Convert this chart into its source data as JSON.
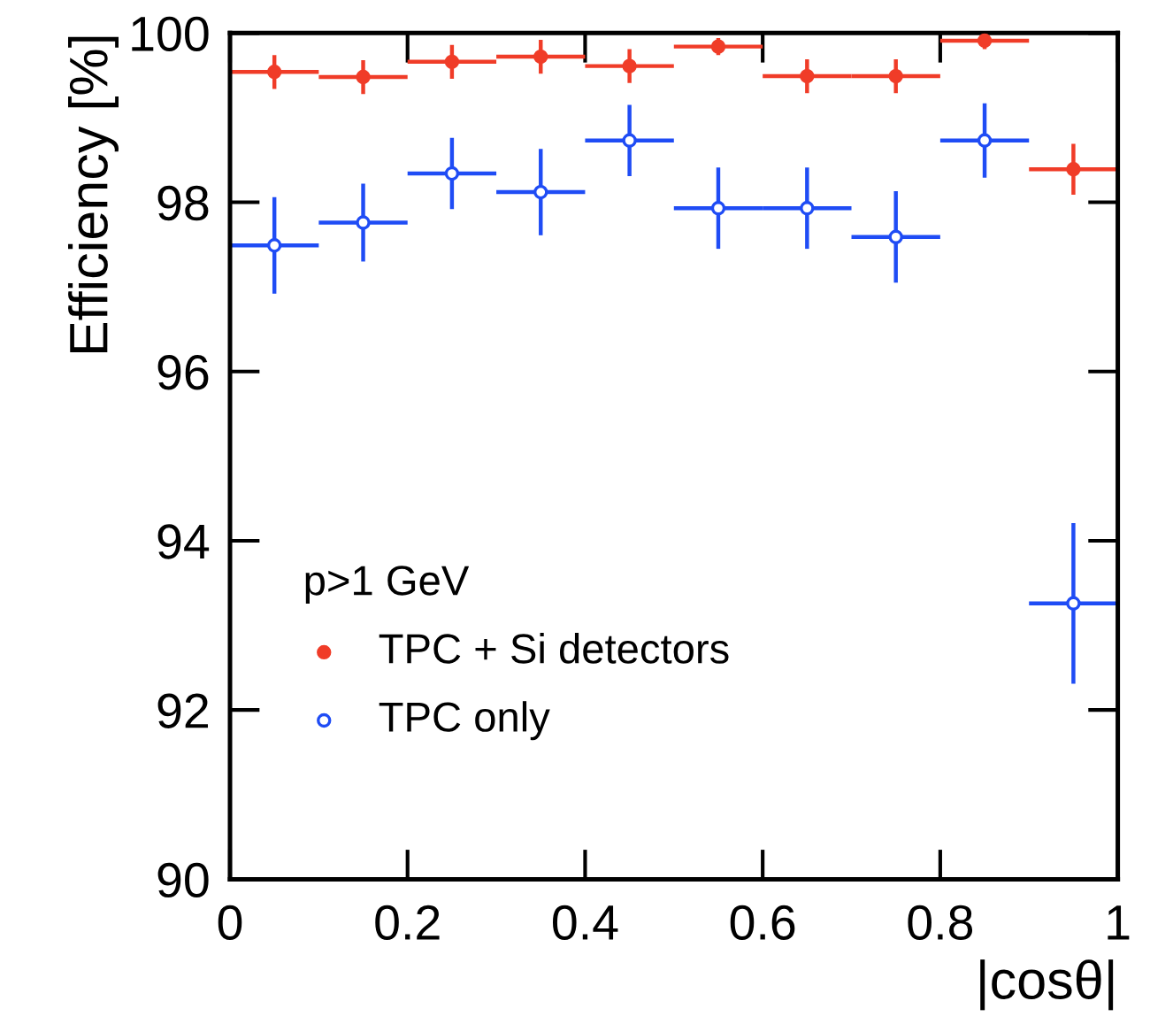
{
  "chart_data": {
    "type": "scatter",
    "xlabel": "|cosθ|",
    "ylabel": "Efficiency [%]",
    "legend_title": "p>1 GeV",
    "legend": "bottom left",
    "marker": "circle",
    "grid": false,
    "xlim": [
      0,
      1
    ],
    "xticks": [
      0,
      0.2,
      0.4,
      0.6,
      0.8,
      1
    ],
    "ylim": [
      90,
      100
    ],
    "yticks": [
      90,
      92,
      94,
      96,
      98,
      100
    ],
    "series": [
      {
        "name": "TPC + Si detectors",
        "color": "#f03c28",
        "x": [
          0.05,
          0.15,
          0.25,
          0.35,
          0.45,
          0.55,
          0.65,
          0.75,
          0.85,
          0.95
        ],
        "values": [
          99.54,
          99.48,
          99.66,
          99.72,
          99.61,
          99.84,
          99.49,
          99.49,
          99.91,
          98.39
        ],
        "errors": [
          0.2,
          0.2,
          0.2,
          0.2,
          0.2,
          0.1,
          0.2,
          0.2,
          0.1,
          0.3
        ],
        "xerrors": [
          0.05,
          0.05,
          0.05,
          0.05,
          0.05,
          0.05,
          0.05,
          0.05,
          0.05,
          0.05
        ]
      },
      {
        "name": "TPC only",
        "color": "#1f4cf5",
        "x": [
          0.05,
          0.15,
          0.25,
          0.35,
          0.45,
          0.55,
          0.65,
          0.75,
          0.85,
          0.95
        ],
        "values": [
          97.49,
          97.76,
          98.34,
          98.12,
          98.73,
          97.93,
          97.93,
          97.59,
          98.73,
          93.26
        ],
        "errors": [
          0.57,
          0.46,
          0.42,
          0.51,
          0.42,
          0.48,
          0.48,
          0.54,
          0.44,
          0.95
        ],
        "xerrors": [
          0.05,
          0.05,
          0.05,
          0.05,
          0.05,
          0.05,
          0.05,
          0.05,
          0.05,
          0.05
        ]
      }
    ]
  }
}
